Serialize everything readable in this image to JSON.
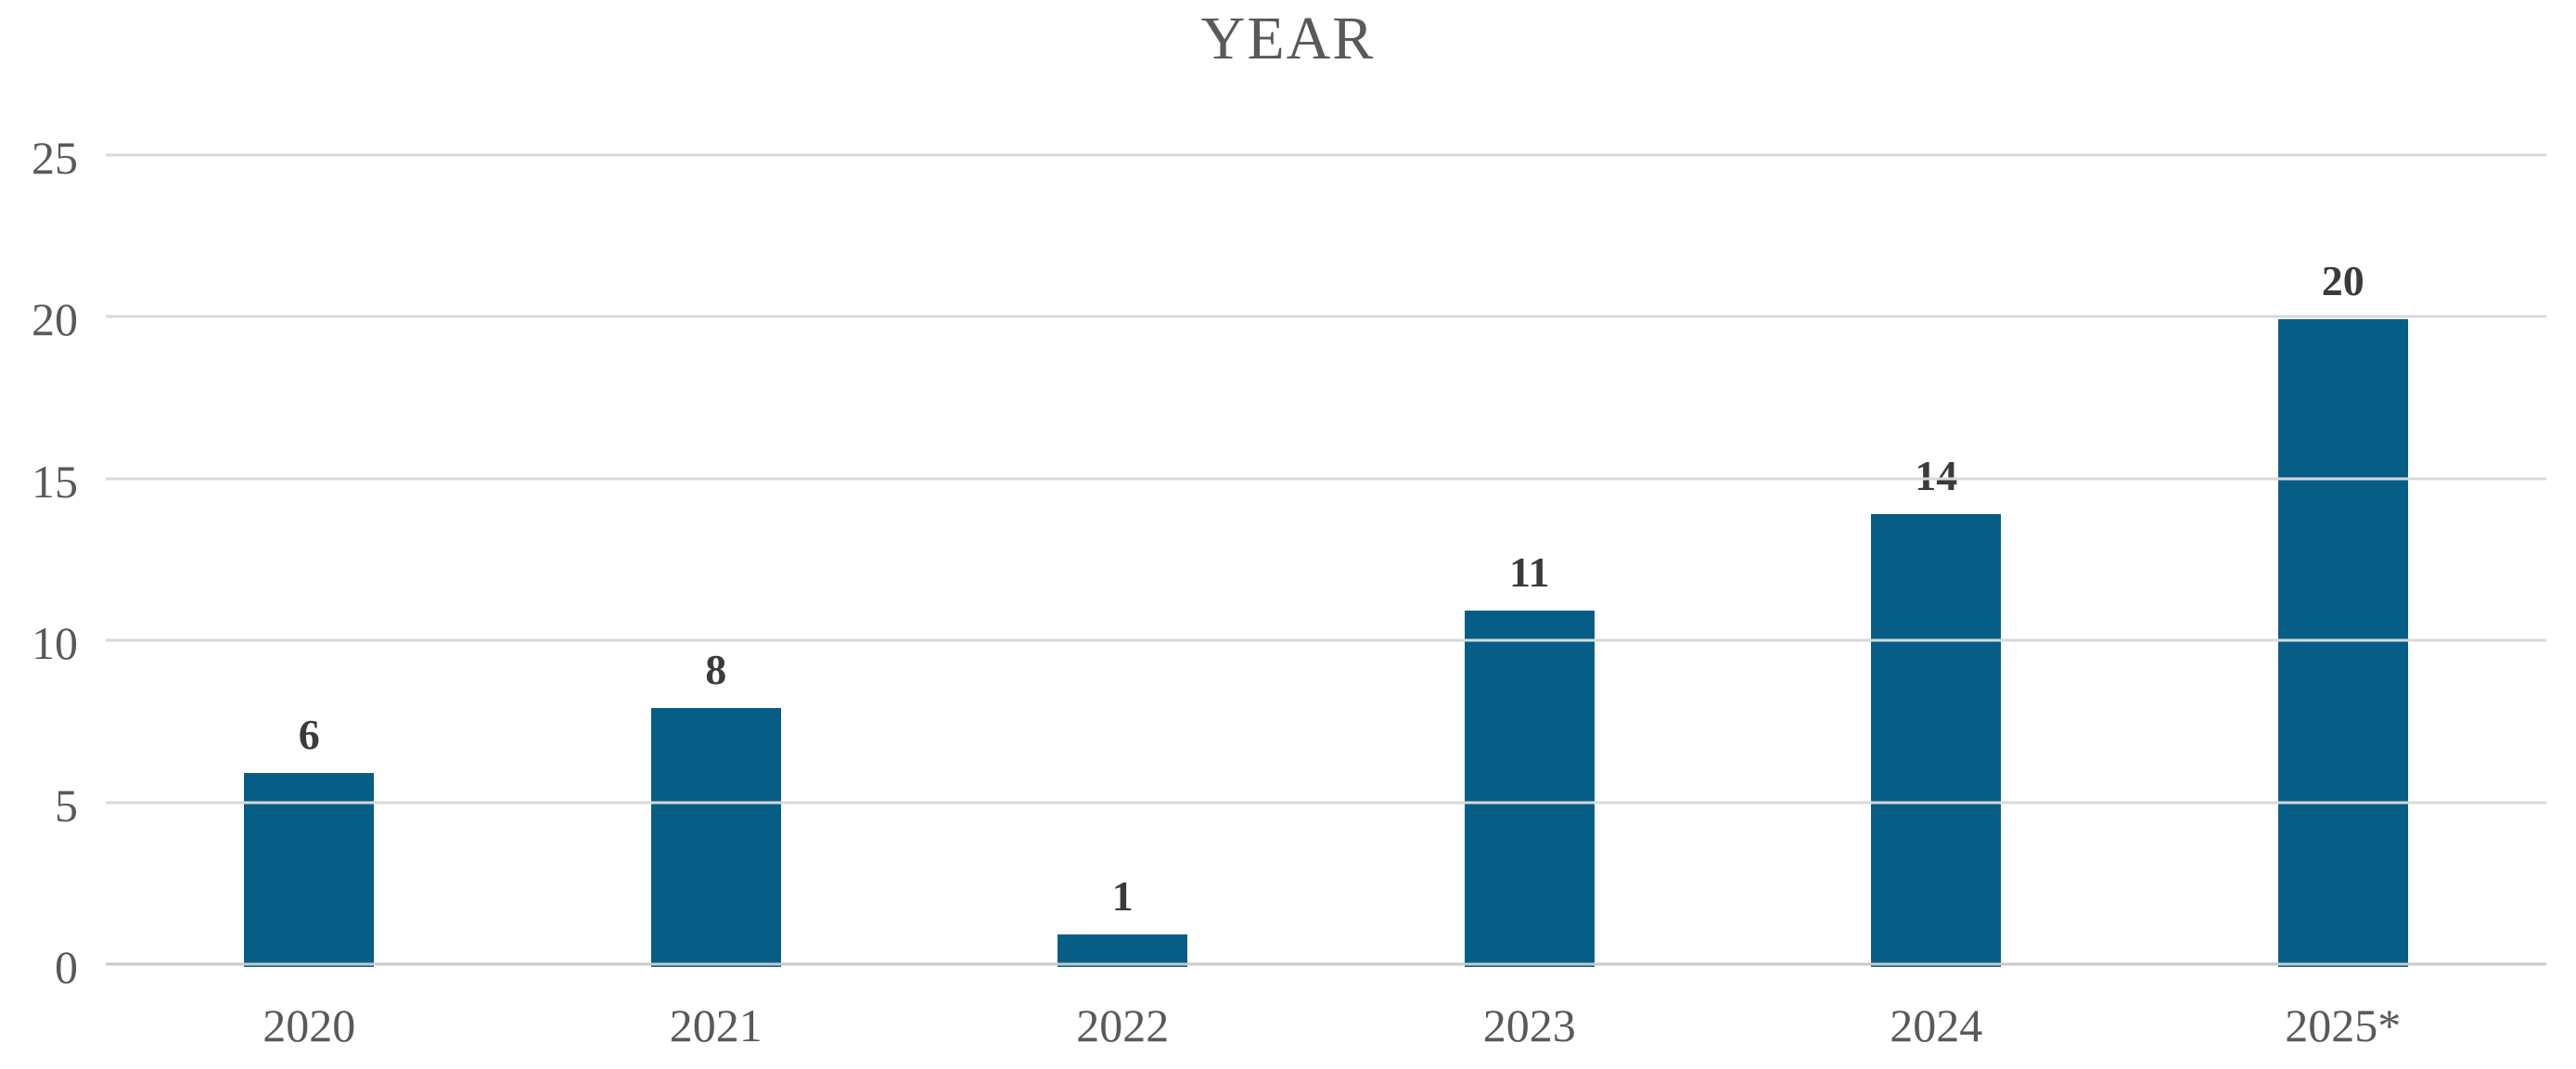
{
  "chart_data": {
    "type": "bar",
    "title": "YEAR",
    "categories": [
      "2020",
      "2021",
      "2022",
      "2023",
      "2024",
      "2025*"
    ],
    "values": [
      6,
      8,
      1,
      11,
      14,
      20
    ],
    "value_labels": [
      "6",
      "8",
      "1",
      "11",
      "14",
      "20"
    ],
    "xlabel": "",
    "ylabel": "",
    "ylim": [
      0,
      25
    ],
    "yticks": [
      0,
      5,
      10,
      15,
      20,
      25
    ],
    "ytick_labels": [
      "0",
      "5",
      "10",
      "15",
      "20",
      "25"
    ],
    "grid": true,
    "legend": "none",
    "colors": {
      "bar": "#065E86",
      "gridline": "#D9D9D9",
      "axis_line": "#C9C9C9",
      "title_text": "#595959",
      "tick_text": "#595959",
      "value_label_text": "#3B3B3B",
      "background": "#FFFFFF"
    }
  }
}
